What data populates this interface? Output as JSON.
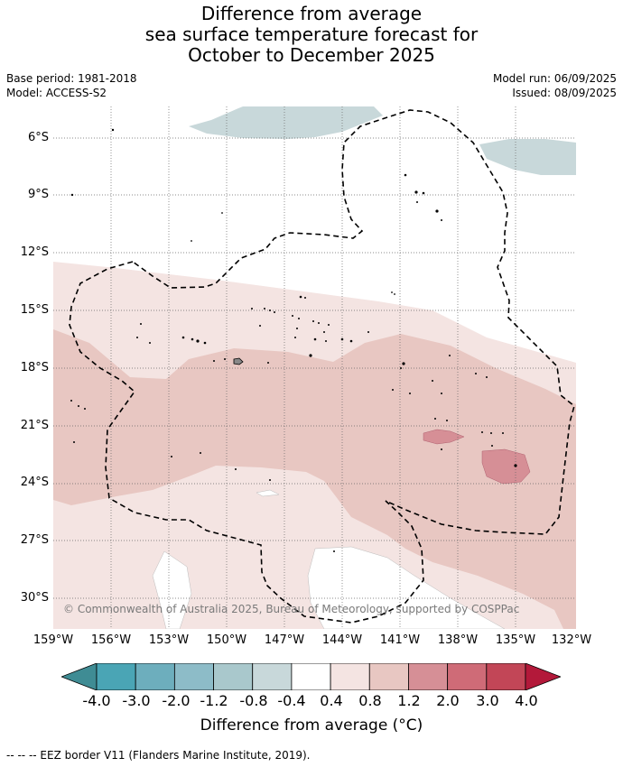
{
  "title": {
    "line1": "Difference from average",
    "line2": "sea surface temperature forecast for",
    "line3": "October to December 2025"
  },
  "meta": {
    "base_period": "Base period: 1981-2018",
    "model": "Model: ACCESS-S2",
    "model_run": "Model run: 06/09/2025",
    "issued": "Issued: 08/09/2025"
  },
  "map": {
    "lon_range": [
      -159,
      -132
    ],
    "lat_range": [
      -31.5,
      -4.5
    ],
    "lat_ticks": [
      "6°S",
      "9°S",
      "12°S",
      "15°S",
      "18°S",
      "21°S",
      "24°S",
      "27°S",
      "30°S"
    ],
    "lon_ticks": [
      "159°W",
      "156°W",
      "153°W",
      "150°W",
      "147°W",
      "144°W",
      "141°W",
      "138°W",
      "135°W",
      "132°W"
    ],
    "grid": true,
    "copyright": "© Commonwealth of Australia 2025, Bureau of Meteorology, supported by COSPPac"
  },
  "colorbar": {
    "tick_labels": [
      "-4.0",
      "-3.0",
      "-2.0",
      "-1.2",
      "-0.8",
      "-0.4",
      "0.4",
      "0.8",
      "1.2",
      "2.0",
      "3.0",
      "4.0"
    ],
    "colors": [
      "#3f8c94",
      "#4aa5b5",
      "#6daebd",
      "#8dbcc8",
      "#a9c8cc",
      "#c8d8da",
      "#ffffff",
      "#f4e4e2",
      "#e8c7c2",
      "#d68f96",
      "#cf6b77",
      "#c24657",
      "#b3193a"
    ],
    "label": "Difference from average (°C)"
  },
  "footer": "--  --  -- EEZ border V11 (Flanders Marine Institute, 2019)."
}
